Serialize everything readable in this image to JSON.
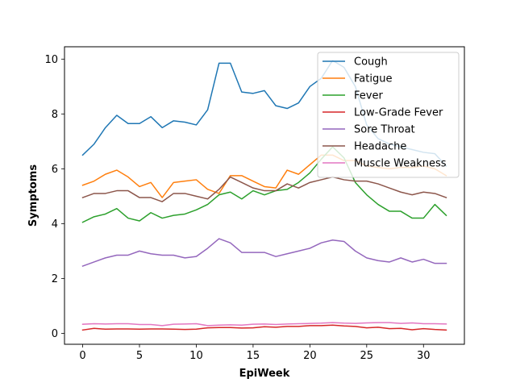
{
  "chart_data": {
    "type": "line",
    "title": "",
    "xlabel": "EpiWeek",
    "ylabel": "Symptoms",
    "xlim": [
      -1.6,
      33.6
    ],
    "ylim": [
      -0.4,
      10.45
    ],
    "xticks": [
      0,
      5,
      10,
      15,
      20,
      25,
      30
    ],
    "yticks": [
      0,
      2,
      4,
      6,
      8,
      10
    ],
    "grid": false,
    "legend_position": "upper right",
    "x": [
      0,
      1,
      2,
      3,
      4,
      5,
      6,
      7,
      8,
      9,
      10,
      11,
      12,
      13,
      14,
      15,
      16,
      17,
      18,
      19,
      20,
      21,
      22,
      23,
      24,
      25,
      26,
      27,
      28,
      29,
      30,
      31,
      32
    ],
    "series": [
      {
        "name": "Cough",
        "color": "#1f77b4",
        "values": [
          6.5,
          6.9,
          7.5,
          7.95,
          7.65,
          7.65,
          7.9,
          7.5,
          7.75,
          7.7,
          7.6,
          8.15,
          9.85,
          9.85,
          8.8,
          8.75,
          8.85,
          8.3,
          8.2,
          8.4,
          9.0,
          9.3,
          9.95,
          9.7,
          9.0,
          7.6,
          7.1,
          6.9,
          6.8,
          6.7,
          6.6,
          6.55,
          6.1
        ]
      },
      {
        "name": "Fatigue",
        "color": "#ff7f0e",
        "values": [
          5.4,
          5.55,
          5.8,
          5.95,
          5.7,
          5.35,
          5.5,
          4.95,
          5.5,
          5.55,
          5.6,
          5.25,
          5.1,
          5.75,
          5.75,
          5.55,
          5.35,
          5.3,
          5.95,
          5.8,
          6.15,
          6.5,
          6.5,
          6.3,
          6.3,
          6.1,
          6.05,
          6.0,
          6.05,
          6.05,
          6.1,
          6.0,
          5.75
        ]
      },
      {
        "name": "Fever",
        "color": "#2ca02c",
        "values": [
          4.05,
          4.25,
          4.35,
          4.55,
          4.2,
          4.1,
          4.4,
          4.2,
          4.3,
          4.35,
          4.5,
          4.7,
          5.05,
          5.15,
          4.9,
          5.2,
          5.05,
          5.2,
          5.25,
          5.5,
          5.85,
          6.35,
          6.8,
          6.4,
          5.5,
          5.05,
          4.7,
          4.45,
          4.45,
          4.2,
          4.2,
          4.7,
          4.3
        ]
      },
      {
        "name": "Low-Grade Fever",
        "color": "#d62728",
        "values": [
          0.12,
          0.18,
          0.15,
          0.16,
          0.16,
          0.15,
          0.16,
          0.16,
          0.15,
          0.14,
          0.15,
          0.2,
          0.21,
          0.21,
          0.19,
          0.2,
          0.24,
          0.22,
          0.25,
          0.25,
          0.28,
          0.28,
          0.3,
          0.27,
          0.25,
          0.2,
          0.22,
          0.17,
          0.18,
          0.13,
          0.17,
          0.14,
          0.12
        ]
      },
      {
        "name": "Sore Throat",
        "color": "#9467bd",
        "values": [
          2.45,
          2.6,
          2.75,
          2.85,
          2.85,
          3.0,
          2.9,
          2.85,
          2.85,
          2.75,
          2.8,
          3.1,
          3.45,
          3.3,
          2.95,
          2.95,
          2.95,
          2.8,
          2.9,
          3.0,
          3.1,
          3.3,
          3.4,
          3.35,
          3.0,
          2.75,
          2.65,
          2.6,
          2.75,
          2.6,
          2.7,
          2.55,
          2.55
        ]
      },
      {
        "name": "Headache",
        "color": "#8c564b",
        "values": [
          4.95,
          5.1,
          5.1,
          5.2,
          5.2,
          4.95,
          4.95,
          4.8,
          5.1,
          5.1,
          5.0,
          4.9,
          5.25,
          5.7,
          5.5,
          5.3,
          5.2,
          5.2,
          5.45,
          5.3,
          5.5,
          5.6,
          5.7,
          5.6,
          5.55,
          5.55,
          5.45,
          5.3,
          5.15,
          5.05,
          5.15,
          5.1,
          4.95
        ]
      },
      {
        "name": "Muscle Weakness",
        "color": "#e377c2",
        "values": [
          0.33,
          0.35,
          0.34,
          0.35,
          0.35,
          0.32,
          0.32,
          0.28,
          0.33,
          0.34,
          0.35,
          0.28,
          0.3,
          0.31,
          0.3,
          0.33,
          0.34,
          0.32,
          0.34,
          0.35,
          0.36,
          0.37,
          0.39,
          0.37,
          0.36,
          0.38,
          0.39,
          0.39,
          0.36,
          0.38,
          0.35,
          0.35,
          0.34
        ]
      }
    ]
  }
}
